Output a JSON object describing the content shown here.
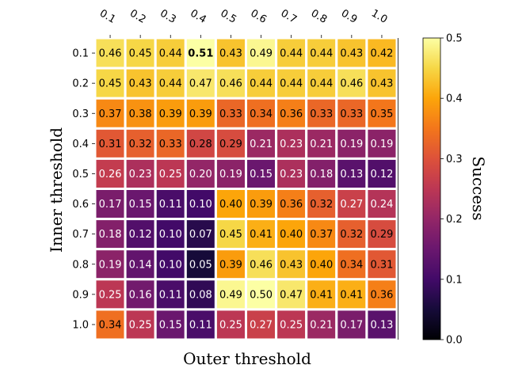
{
  "chart_data": {
    "type": "heatmap",
    "title": "",
    "xlabel": "Outer threshold",
    "ylabel": "Inner threshold",
    "x_categories": [
      "0.1",
      "0.2",
      "0.3",
      "0.4",
      "0.5",
      "0.6",
      "0.7",
      "0.8",
      "0.9",
      "1.0"
    ],
    "y_categories": [
      "0.1",
      "0.2",
      "0.3",
      "0.4",
      "0.5",
      "0.6",
      "0.7",
      "0.8",
      "0.9",
      "1.0"
    ],
    "values": [
      [
        0.46,
        0.45,
        0.44,
        0.51,
        0.43,
        0.49,
        0.44,
        0.44,
        0.43,
        0.42
      ],
      [
        0.45,
        0.43,
        0.44,
        0.47,
        0.46,
        0.44,
        0.44,
        0.44,
        0.46,
        0.43
      ],
      [
        0.37,
        0.38,
        0.39,
        0.39,
        0.33,
        0.34,
        0.36,
        0.33,
        0.33,
        0.35
      ],
      [
        0.31,
        0.32,
        0.33,
        0.28,
        0.29,
        0.21,
        0.23,
        0.21,
        0.19,
        0.19
      ],
      [
        0.26,
        0.23,
        0.25,
        0.2,
        0.19,
        0.15,
        0.23,
        0.18,
        0.13,
        0.12
      ],
      [
        0.17,
        0.15,
        0.11,
        0.1,
        0.4,
        0.39,
        0.36,
        0.32,
        0.27,
        0.24
      ],
      [
        0.18,
        0.12,
        0.1,
        0.07,
        0.45,
        0.41,
        0.4,
        0.37,
        0.32,
        0.29
      ],
      [
        0.19,
        0.14,
        0.1,
        0.05,
        0.39,
        0.46,
        0.43,
        0.4,
        0.34,
        0.31
      ],
      [
        0.25,
        0.16,
        0.11,
        0.08,
        0.49,
        0.5,
        0.47,
        0.41,
        0.41,
        0.36
      ],
      [
        0.34,
        0.25,
        0.15,
        0.11,
        0.25,
        0.27,
        0.25,
        0.21,
        0.17,
        0.13
      ]
    ],
    "highlighted_cell": {
      "row": "0.1",
      "col": "0.4",
      "value": 0.51
    },
    "colormap": "inferno",
    "colorbar": {
      "label": "Success",
      "range": [
        0.0,
        0.5
      ],
      "ticks": [
        "0.0",
        "0.1",
        "0.2",
        "0.3",
        "0.4",
        "0.5"
      ]
    },
    "x_tick_position": "top",
    "grid": false
  }
}
